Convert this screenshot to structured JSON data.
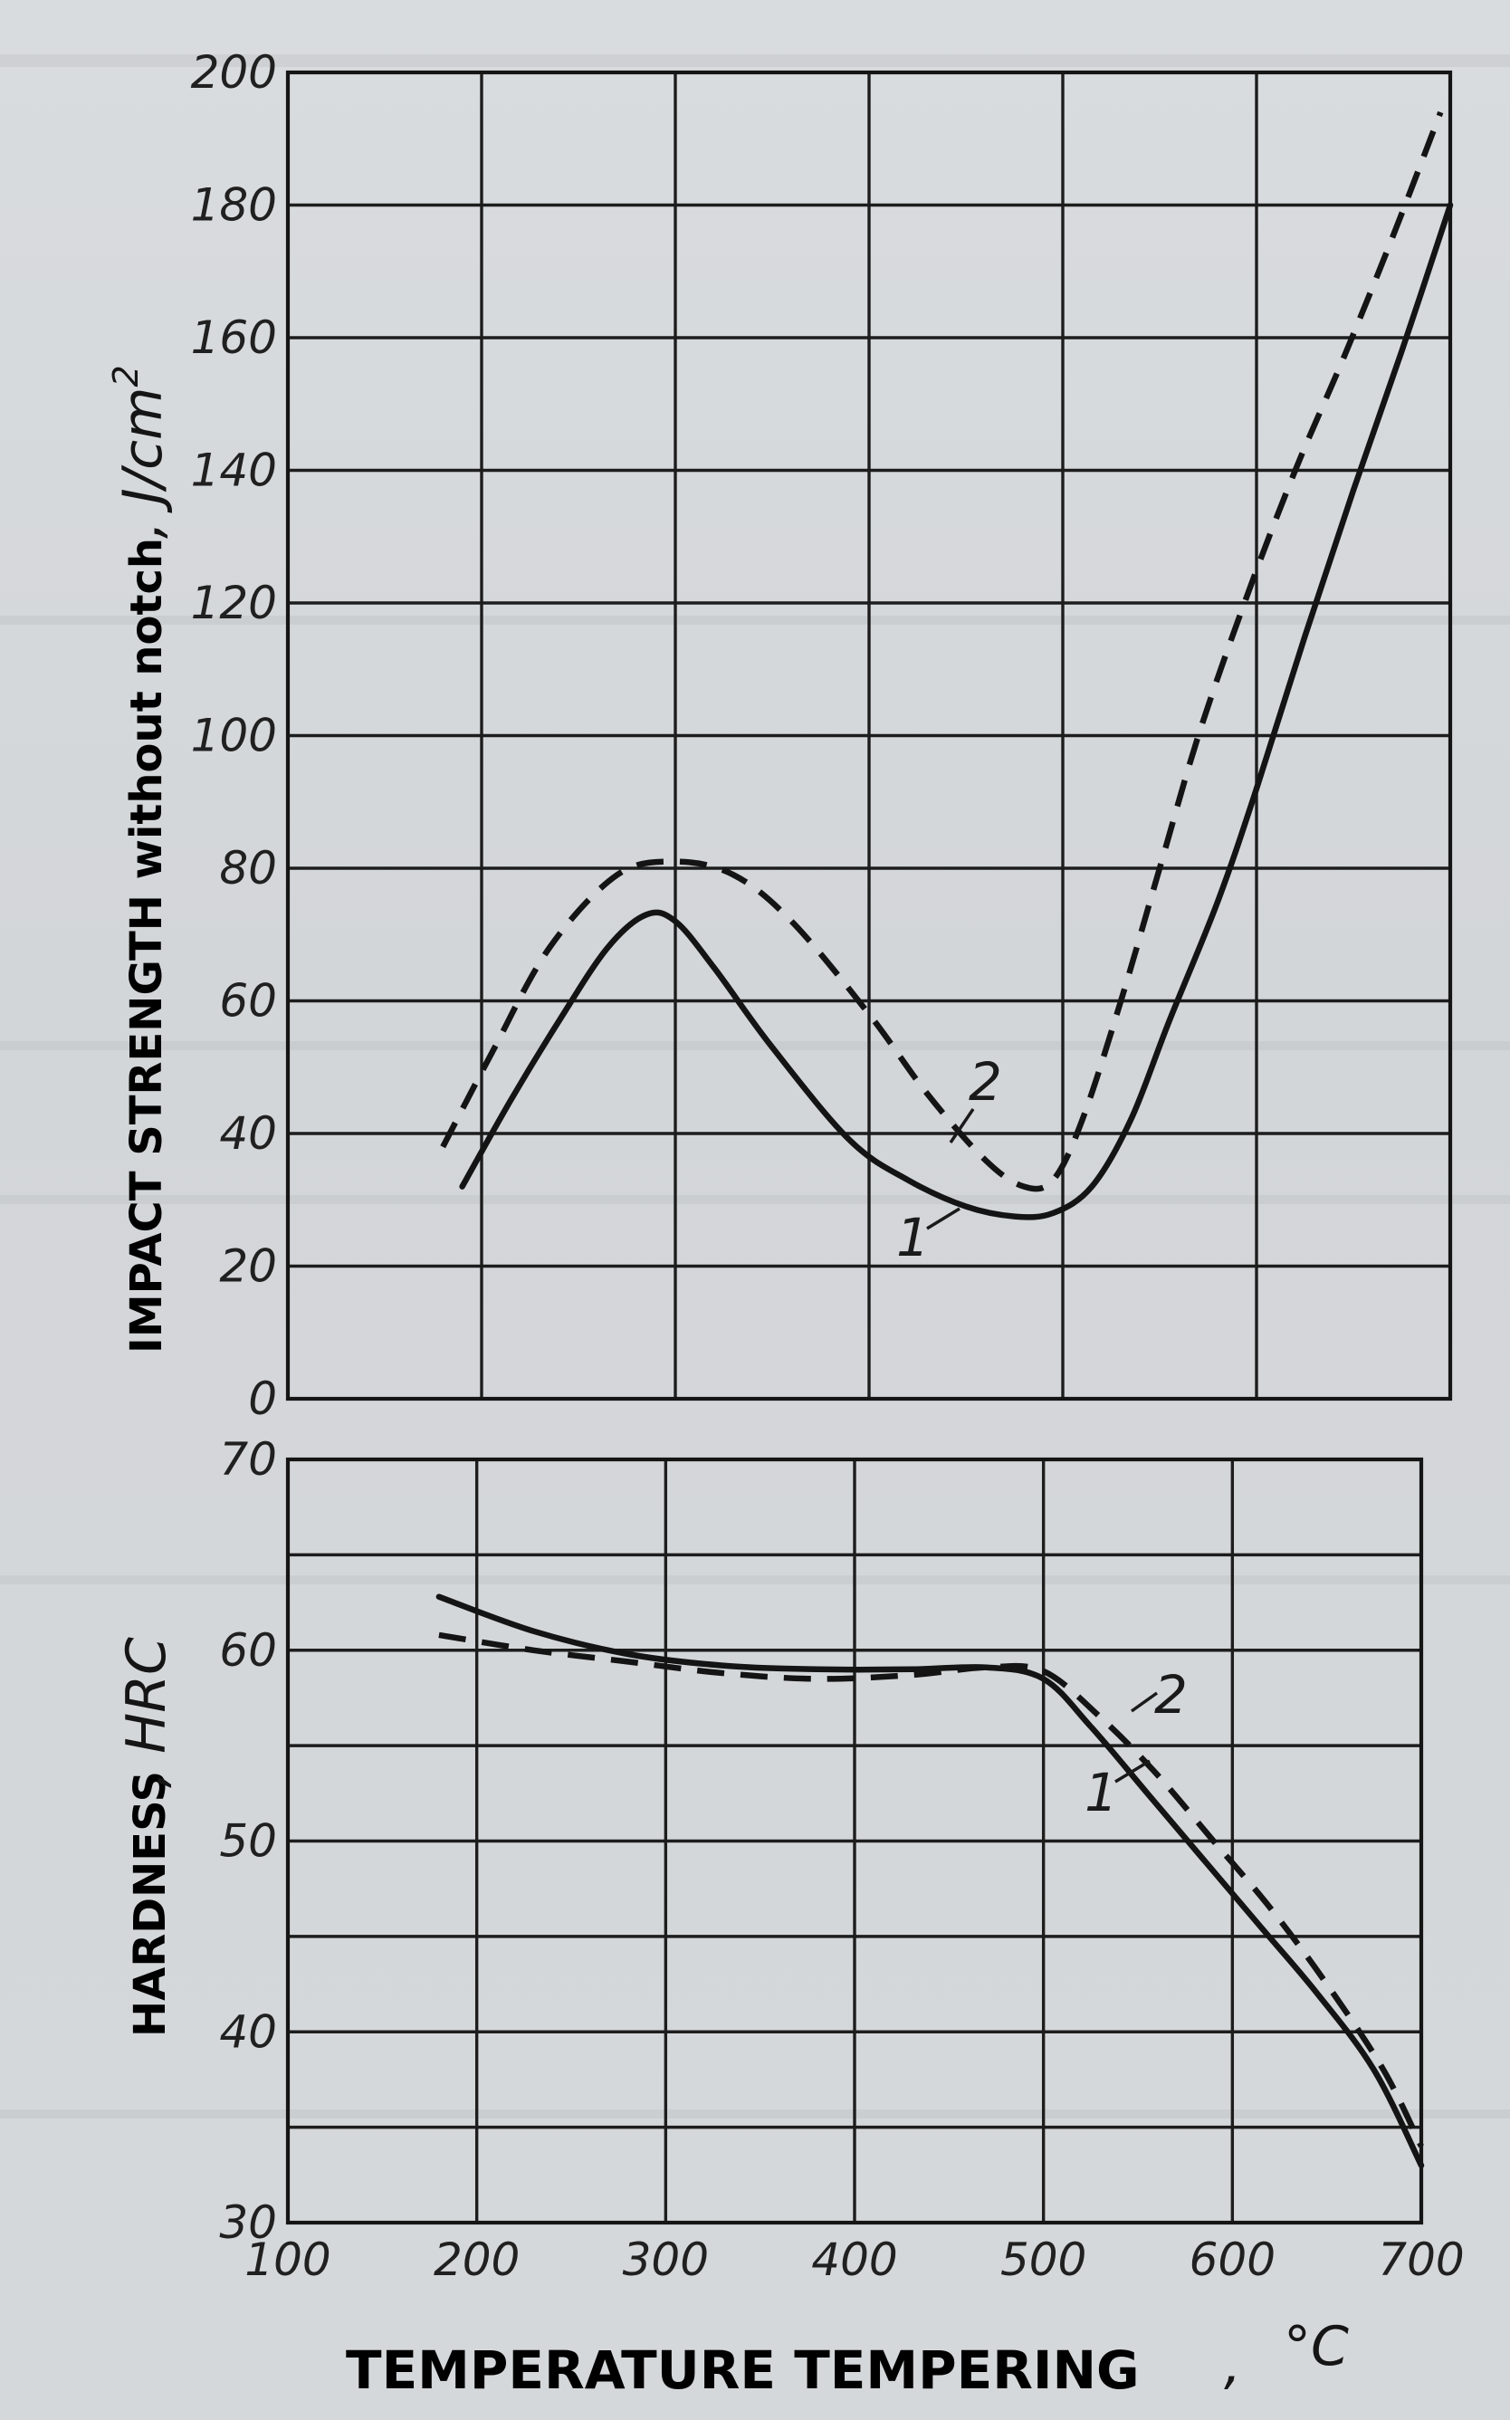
{
  "chart_data": [
    {
      "type": "line",
      "ylabel": "IMPACT STRENGTH without notch",
      "yunit": "J/cm",
      "yunit_sup": "2",
      "xlim": [
        100,
        700
      ],
      "ylim": [
        0,
        200
      ],
      "xticks": [
        "100",
        "200",
        "300",
        "400",
        "500",
        "600",
        "700"
      ],
      "yticks": [
        "0",
        "20",
        "40",
        "60",
        "80",
        "100",
        "120",
        "140",
        "160",
        "180",
        "200"
      ],
      "grid": true,
      "series": [
        {
          "name": "1",
          "style": "solid",
          "x": [
            190,
            215,
            240,
            265,
            285,
            300,
            320,
            350,
            390,
            420,
            450,
            475,
            495,
            515,
            535,
            555,
            580,
            600,
            625,
            650,
            675,
            700
          ],
          "y": [
            32,
            45,
            57,
            68,
            73,
            72,
            65,
            53,
            39,
            33,
            29,
            27.5,
            28,
            32,
            42,
            57,
            75,
            92,
            115,
            137,
            158,
            180
          ]
        },
        {
          "name": "2",
          "style": "dashed",
          "x": [
            180,
            205,
            235,
            270,
            300,
            330,
            360,
            400,
            430,
            460,
            480,
            495,
            510,
            530,
            550,
            570,
            595,
            620,
            645,
            670,
            695
          ],
          "y": [
            38,
            52,
            68,
            79,
            81,
            79,
            72,
            58,
            46,
            36,
            32,
            33,
            42,
            60,
            80,
            100,
            121,
            140,
            157,
            175,
            194
          ]
        }
      ]
    },
    {
      "type": "line",
      "ylabel": "HARDNESS",
      "yunit": "HRC",
      "xlabel": "TEMPERATURE TEMPERING",
      "xunit": "°C",
      "xlim": [
        100,
        700
      ],
      "ylim": [
        30,
        70
      ],
      "xticks": [
        "100",
        "200",
        "300",
        "400",
        "500",
        "600",
        "700"
      ],
      "yticks": [
        "30",
        "40",
        "50",
        "60",
        "70"
      ],
      "grid": true,
      "series": [
        {
          "name": "1",
          "style": "solid",
          "x": [
            180,
            230,
            280,
            330,
            380,
            430,
            470,
            500,
            525,
            555,
            585,
            615,
            645,
            675,
            700
          ],
          "y": [
            62.8,
            61,
            59.8,
            59.2,
            59,
            59,
            59.1,
            58.5,
            56,
            52.5,
            49,
            45.5,
            42,
            38,
            33
          ]
        },
        {
          "name": "2",
          "style": "dashed",
          "x": [
            180,
            230,
            280,
            330,
            380,
            430,
            470,
            500,
            530,
            560,
            590,
            620,
            650,
            680,
            700
          ],
          "y": [
            60.8,
            60,
            59.4,
            58.8,
            58.5,
            58.7,
            59.1,
            58.9,
            56.5,
            53.5,
            50,
            46.5,
            42.5,
            38,
            34
          ]
        }
      ]
    }
  ]
}
